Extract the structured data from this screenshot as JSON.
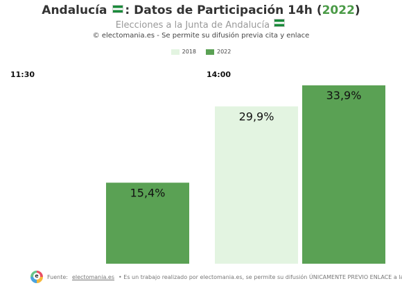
{
  "header": {
    "title_part1": "Andalucía",
    "title_part2": ": Datos de Participación 14h (",
    "title_year": "2022",
    "title_part3": ")",
    "subtitle": "Elecciones a la Junta de Andalucía",
    "credit": "© electomania.es - Se permite su difusión previa cita y enlace"
  },
  "legend": [
    {
      "label": "2018",
      "color": "#e3f4e1"
    },
    {
      "label": "2022",
      "color": "#5aa154"
    }
  ],
  "footer": {
    "prefix": "Fuente:",
    "link": "electomania.es",
    "text": "• Es un trabajo realizado por electomania.es, se permite su difusión ÚNICAMENTE PREVIO ENLACE a la web"
  },
  "chart_data": {
    "type": "bar",
    "groups": [
      "11:30",
      "14:00"
    ],
    "series": [
      {
        "name": "2018",
        "values": [
          null,
          29.9
        ],
        "labels": [
          "",
          "29,9%"
        ],
        "color": "#e3f4e1"
      },
      {
        "name": "2022",
        "values": [
          15.4,
          33.9
        ],
        "labels": [
          "15,4%",
          "33,9%"
        ],
        "color": "#5aa154"
      }
    ],
    "ylim": [
      0,
      33.9
    ],
    "grid": false,
    "legend_position": "top"
  }
}
